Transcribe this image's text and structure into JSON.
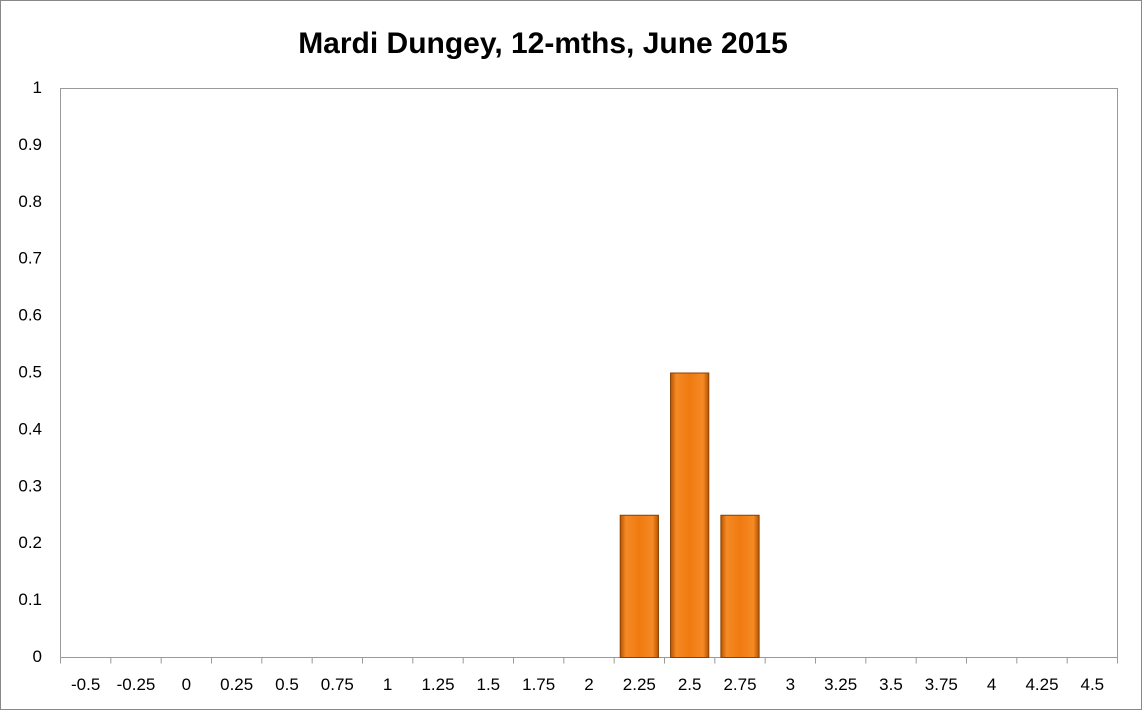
{
  "chart_data": {
    "type": "bar",
    "title": "Mardi Dungey, 12-mths, June 2015",
    "categories": [
      "-0.5",
      "-0.25",
      "0",
      "0.25",
      "0.5",
      "0.75",
      "1",
      "1.25",
      "1.5",
      "1.75",
      "2",
      "2.25",
      "2.5",
      "2.75",
      "3",
      "3.25",
      "3.5",
      "3.75",
      "4",
      "4.25",
      "4.5"
    ],
    "values": [
      0,
      0,
      0,
      0,
      0,
      0,
      0,
      0,
      0,
      0,
      0,
      0.25,
      0.5,
      0.25,
      0,
      0,
      0,
      0,
      0,
      0,
      0
    ],
    "color": "#f07a10",
    "ylim": [
      0,
      1
    ],
    "yticks": [
      0,
      0.1,
      0.2,
      0.3,
      0.4,
      0.5,
      0.6,
      0.7,
      0.8,
      0.9,
      1
    ],
    "grid": false
  }
}
